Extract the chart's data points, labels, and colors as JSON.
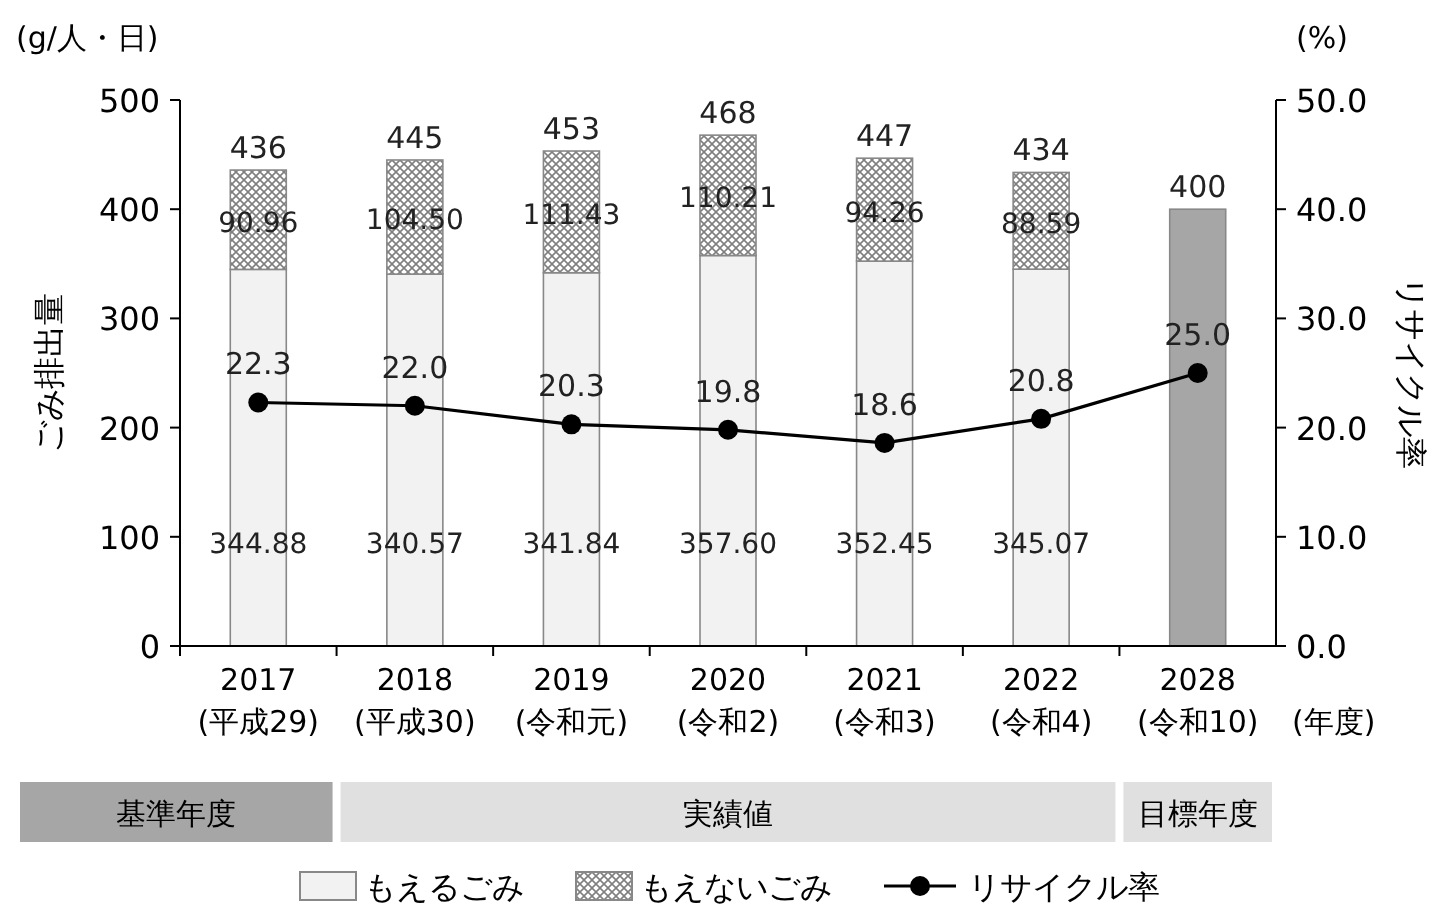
{
  "chart_data": {
    "type": "bar",
    "stacked": true,
    "categories": [
      "2017\n(平成29)",
      "2018\n(平成30)",
      "2019\n(令和元)",
      "2020\n(令和2)",
      "2021\n(令和3)",
      "2022\n(令和4)",
      "2028\n(令和10)"
    ],
    "xlabel": "(年度)",
    "ylabel": "ごみ排出量",
    "y2label": "リサイクル率",
    "ylim": [
      0,
      500
    ],
    "yticks": [
      0,
      100,
      200,
      300,
      400,
      500
    ],
    "y2lim": [
      0,
      50
    ],
    "y2ticks": [
      {
        "value": 0,
        "label": "0.0"
      },
      {
        "value": 10,
        "label": "10.0"
      },
      {
        "value": 20,
        "label": "20.0"
      },
      {
        "value": 30,
        "label": "30.0"
      },
      {
        "value": 40,
        "label": "40.0"
      },
      {
        "value": 50,
        "label": "50.0"
      }
    ],
    "series": [
      {
        "name": "もえるごみ",
        "color": "#f2f2f2",
        "values": [
          344.88,
          340.57,
          341.84,
          357.6,
          352.45,
          345.07,
          null
        ],
        "value_labels": [
          "344.88",
          "340.57",
          "341.84",
          "357.60",
          "352.45",
          "345.07",
          null
        ]
      },
      {
        "name": "もえないごみ",
        "color": "#7f7f7f",
        "values": [
          90.96,
          104.5,
          111.43,
          110.21,
          94.26,
          88.59,
          null
        ],
        "value_labels": [
          "90.96",
          "104.50",
          "111.43",
          "110.21",
          "94.26",
          "88.59",
          null
        ]
      },
      {
        "color": "#a6a6a6",
        "values": [
          null,
          null,
          null,
          null,
          null,
          null,
          400
        ]
      },
      {
        "name": "リサイクル率",
        "type": "line",
        "axis": "y2",
        "color": "#000000",
        "marker": "circle",
        "line_style": "solid",
        "values": [
          22.3,
          22.0,
          20.3,
          19.8,
          18.6,
          20.8,
          25.0
        ],
        "value_labels": [
          "22.3",
          "22.0",
          "20.3",
          "19.8",
          "18.6",
          "20.8",
          "25.0"
        ]
      }
    ],
    "totals": [
      "436",
      "445",
      "453",
      "468",
      "447",
      "434",
      "400"
    ],
    "annotations": [
      "(g/人・日)",
      "(%)",
      "基準年度",
      "実績値",
      "目標年度"
    ],
    "legend": "bottom",
    "grid": false
  }
}
